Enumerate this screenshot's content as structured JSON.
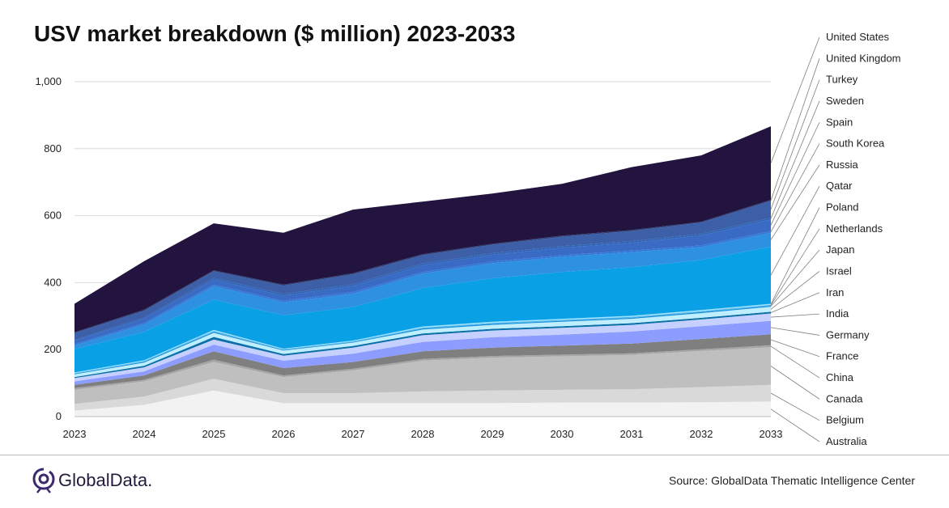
{
  "title": "USV market breakdown ($ million) 2023-2033",
  "source": "Source: GlobalData Thematic Intelligence Center",
  "logo": {
    "text": "GlobalData.",
    "icon": "globaldata-logo-icon"
  },
  "chart_data": {
    "type": "area",
    "stacked": true,
    "title": "USV market breakdown ($ million) 2023-2033",
    "xlabel": "",
    "ylabel": "",
    "ylim": [
      0,
      1000
    ],
    "yticks": [
      0,
      200,
      400,
      600,
      800,
      1000
    ],
    "ytick_labels": [
      "0",
      "200",
      "400",
      "600",
      "800",
      "1,000"
    ],
    "grid": true,
    "legend_position": "right",
    "x": [
      "2023",
      "2024",
      "2025",
      "2026",
      "2027",
      "2028",
      "2029",
      "2030",
      "2031",
      "2032",
      "2033"
    ],
    "series": [
      {
        "name": "Australia",
        "color": "#f2f2f2",
        "values": [
          18,
          35,
          78,
          40,
          40,
          40,
          40,
          42,
          42,
          43,
          45
        ]
      },
      {
        "name": "Belgium",
        "color": "#d9d9d9",
        "values": [
          20,
          25,
          35,
          30,
          30,
          35,
          38,
          38,
          40,
          45,
          50
        ]
      },
      {
        "name": "Canada",
        "color": "#bfbfbf",
        "values": [
          42,
          45,
          50,
          48,
          68,
          92,
          98,
          100,
          102,
          108,
          112
        ]
      },
      {
        "name": "China",
        "color": "#a6a6a6",
        "values": [
          5,
          5,
          7,
          5,
          5,
          5,
          5,
          5,
          5,
          5,
          6
        ]
      },
      {
        "name": "France",
        "color": "#7f7f7f",
        "values": [
          10,
          13,
          25,
          22,
          20,
          23,
          25,
          27,
          29,
          31,
          33
        ]
      },
      {
        "name": "Germany",
        "color": "#8c9cff",
        "values": [
          10,
          12,
          20,
          22,
          25,
          28,
          31,
          33,
          36,
          38,
          40
        ]
      },
      {
        "name": "India",
        "color": "#c5d0ff",
        "values": [
          10,
          12,
          15,
          15,
          18,
          20,
          20,
          20,
          20,
          20,
          22
        ]
      },
      {
        "name": "Iran",
        "color": "#0b6fa8",
        "values": [
          3,
          5,
          8,
          5,
          5,
          5,
          5,
          5,
          5,
          5,
          5
        ]
      },
      {
        "name": "Israel",
        "color": "#bfefff",
        "values": [
          8,
          9,
          12,
          10,
          10,
          12,
          12,
          13,
          13,
          14,
          15
        ]
      },
      {
        "name": "Japan",
        "color": "#1a8fd6",
        "values": [
          2,
          3,
          3,
          2,
          2,
          3,
          3,
          3,
          3,
          3,
          3
        ]
      },
      {
        "name": "Netherlands",
        "color": "#4fb6ee",
        "values": [
          2,
          2,
          3,
          2,
          2,
          3,
          3,
          3,
          3,
          3,
          3
        ]
      },
      {
        "name": "Poland",
        "color": "#9be3ff",
        "values": [
          2,
          2,
          3,
          2,
          2,
          3,
          3,
          3,
          3,
          3,
          3
        ]
      },
      {
        "name": "Qatar",
        "color": "#0aa0e6",
        "values": [
          70,
          85,
          90,
          100,
          100,
          115,
          130,
          140,
          145,
          150,
          170
        ]
      },
      {
        "name": "Russia",
        "color": "#2e90e0",
        "values": [
          10,
          22,
          40,
          38,
          40,
          43,
          45,
          45,
          45,
          38,
          42
        ]
      },
      {
        "name": "South Korea",
        "color": "#3378d9",
        "values": [
          4,
          5,
          5,
          5,
          5,
          5,
          5,
          5,
          5,
          5,
          5
        ]
      },
      {
        "name": "Spain",
        "color": "#3a6bc4",
        "values": [
          10,
          12,
          15,
          15,
          18,
          20,
          20,
          22,
          23,
          30,
          35
        ]
      },
      {
        "name": "Sweden",
        "color": "#2e63b5",
        "values": [
          3,
          4,
          5,
          5,
          5,
          5,
          5,
          5,
          5,
          5,
          5
        ]
      },
      {
        "name": "Turkey",
        "color": "#3c5fa8",
        "values": [
          20,
          20,
          20,
          25,
          30,
          25,
          25,
          28,
          30,
          33,
          50
        ]
      },
      {
        "name": "United Kingdom",
        "color": "#2a3f7a",
        "values": [
          3,
          3,
          3,
          3,
          3,
          3,
          3,
          3,
          3,
          3,
          3
        ]
      },
      {
        "name": "United States",
        "color": "#22143f",
        "values": [
          85,
          145,
          140,
          155,
          190,
          157,
          150,
          155,
          188,
          198,
          220
        ]
      }
    ]
  }
}
